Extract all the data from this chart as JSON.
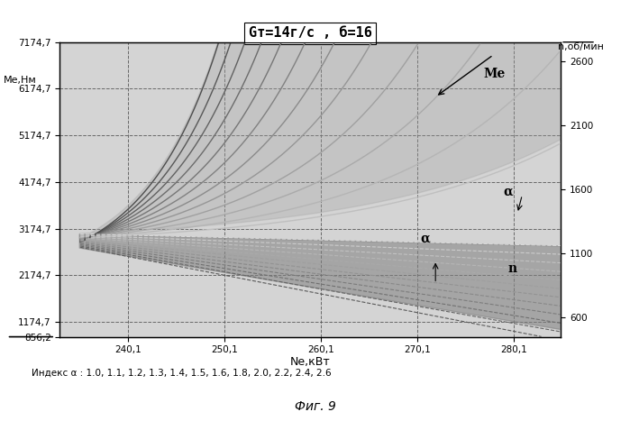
{
  "title": "Gт=14г/с , б=16",
  "ylabel_left": "Ме,Нм",
  "ylabel_right": "n,об/мин",
  "xlabel": "Ne,кВт",
  "index_label": "Индекс α : 1.0, 1.1, 1.2, 1.3, 1.4, 1.5, 1.6, 1.8, 2.0, 2.2, 2.4, 2.6",
  "fig_label": "Фиг. 9",
  "x_min": 233,
  "x_max": 285,
  "x_ticks": [
    240.1,
    250.1,
    260.1,
    270.1,
    280.1
  ],
  "y_left_min": 856.2,
  "y_left_max": 7174.7,
  "y_left_ticks": [
    856.2,
    1174.7,
    2174.7,
    3174.7,
    4174.7,
    5174.7,
    6174.7,
    7174.7
  ],
  "y_right_min": 450,
  "y_right_max": 2750,
  "y_right_ticks": [
    600,
    1100,
    1600,
    2100,
    2600
  ],
  "alpha_values": [
    1.0,
    1.1,
    1.2,
    1.3,
    1.4,
    1.5,
    1.6,
    1.8,
    2.0,
    2.2,
    2.4,
    2.6
  ],
  "bg_color": "#ffffff",
  "plot_bg": "#d4d4d4"
}
